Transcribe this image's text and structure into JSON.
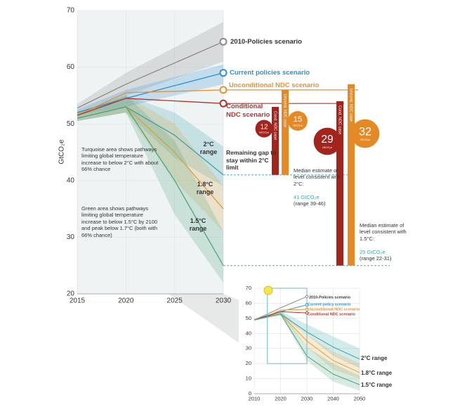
{
  "chart_data": [
    {
      "type": "line",
      "y_label": "GtCO₂e",
      "xlim": [
        2015,
        2030
      ],
      "xticks": [
        2015,
        2020,
        2025,
        2030
      ],
      "ylim": [
        20,
        70
      ],
      "yticks": [
        20,
        30,
        40,
        50,
        60,
        70
      ],
      "series": [
        {
          "name": "2010-Policies scenario",
          "color": "#8a8a86",
          "x": [
            2015,
            2020,
            2030
          ],
          "values": [
            52.8,
            57,
            64.5
          ],
          "low": [
            52,
            55,
            61
          ],
          "high": [
            53.5,
            59,
            68
          ]
        },
        {
          "name": "Current policies scenario",
          "color": "#2f8fd0",
          "x": [
            2015,
            2020,
            2030
          ],
          "values": [
            52,
            54.5,
            59
          ],
          "low": [
            51.5,
            53,
            57
          ],
          "high": [
            52.5,
            56,
            60.5
          ]
        },
        {
          "name": "Unconditional NDC scenario",
          "color": "#e8912e",
          "x": [
            2015,
            2020,
            2030
          ],
          "values": [
            51.5,
            55.5,
            56
          ]
        },
        {
          "name": "Conditional NDC scenario",
          "color": "#b5332a",
          "x": [
            2015,
            2020,
            2030
          ],
          "values": [
            51.5,
            54.5,
            53.6
          ]
        },
        {
          "name": "2°C range",
          "color": "#3aa3a8",
          "x": [
            2015,
            2020,
            2025,
            2030
          ],
          "values": [
            51,
            53,
            48,
            41
          ],
          "low": [
            50.5,
            52,
            44,
            39
          ],
          "high": [
            52,
            55,
            52,
            46
          ]
        },
        {
          "name": "1.8°C range",
          "color": "#d9a23a",
          "x": [
            2015,
            2020,
            2025,
            2030
          ],
          "values": [
            51,
            53,
            45,
            35
          ],
          "low": [
            50.5,
            52,
            40,
            31
          ],
          "high": [
            52,
            55,
            50,
            39
          ]
        },
        {
          "name": "1.5°C range",
          "color": "#4fa57a",
          "x": [
            2015,
            2020,
            2025,
            2030
          ],
          "values": [
            51,
            53,
            40,
            25
          ],
          "low": [
            50.5,
            52,
            34,
            22
          ],
          "high": [
            52,
            55,
            47,
            31
          ]
        }
      ],
      "notes": [
        "Turquoise area shows pathways limiting global temperature increase to below 2°C with about 66% chance",
        "Green area shows pathways limiting global temperature increase to below 1.5°C by 2100 and peak below 1.7°C (both with 66% chance)"
      ],
      "gap_title": "Remaining gap to stay within 2°C limit",
      "gap_unit": "GtCO₂e",
      "gaps": [
        {
          "value": 12,
          "base": 41,
          "color": "#a3241c",
          "label": "Cond. NDC case"
        },
        {
          "value": 15,
          "base": 41,
          "color": "#e38a26",
          "label": "Uncond. NDC case"
        },
        {
          "value": 29,
          "base": 25,
          "color": "#a3241c",
          "label": "Cond. NDC case"
        },
        {
          "value": 32,
          "base": 25,
          "color": "#e38a26",
          "label": "Uncond. NDC case"
        }
      ],
      "medians": [
        {
          "text": "Median estimate of level consistent with 2°C:",
          "value_text": "41 GtCO₂e",
          "range": "(range 39-46)"
        },
        {
          "text": "Median estimate of level consistent with 1.5°C:",
          "value_text": "25 GtCO₂e",
          "range": "(range 22-31)"
        }
      ]
    },
    {
      "type": "line",
      "xlim": [
        2010,
        2050
      ],
      "xticks": [
        2010,
        2020,
        2030,
        2040,
        2050
      ],
      "ylim": [
        0,
        70
      ],
      "yticks": [
        0,
        10,
        20,
        30,
        40,
        50,
        60,
        70
      ],
      "series": [
        {
          "name": "2010-Policies scenario",
          "color": "#8a8a86",
          "x": [
            2010,
            2015,
            2020,
            2030
          ],
          "values": [
            49,
            52.8,
            57,
            64.5
          ]
        },
        {
          "name": "Current policy scenario",
          "color": "#2f8fd0",
          "x": [
            2010,
            2015,
            2020,
            2030
          ],
          "values": [
            49,
            52,
            54.5,
            59
          ]
        },
        {
          "name": "Unconditional NDC scenario",
          "color": "#e8912e",
          "x": [
            2010,
            2015,
            2020,
            2030
          ],
          "values": [
            49,
            51.5,
            55.5,
            56
          ]
        },
        {
          "name": "Conditional NDC scenario",
          "color": "#b5332a",
          "x": [
            2010,
            2015,
            2020,
            2030
          ],
          "values": [
            49,
            51.5,
            54.5,
            53.6
          ]
        },
        {
          "name": "2°C range",
          "color": "#3aa3a8",
          "x": [
            2010,
            2015,
            2020,
            2030,
            2040,
            2050
          ],
          "values": [
            49,
            51,
            53,
            41,
            31,
            23
          ],
          "low": [
            48.5,
            50.5,
            52,
            39,
            25,
            17
          ],
          "high": [
            49.5,
            52,
            55,
            46,
            38,
            30
          ]
        },
        {
          "name": "1.8°C range",
          "color": "#d9a23a",
          "x": [
            2010,
            2015,
            2020,
            2030,
            2040,
            2050
          ],
          "values": [
            49,
            51,
            53,
            35,
            22,
            14
          ],
          "low": [
            48.5,
            50.5,
            52,
            31,
            16,
            10
          ],
          "high": [
            49.5,
            52,
            55,
            39,
            28,
            20
          ]
        },
        {
          "name": "1.5°C range",
          "color": "#4fa57a",
          "x": [
            2010,
            2015,
            2020,
            2030,
            2040,
            2050
          ],
          "values": [
            49,
            51,
            53,
            25,
            13,
            6
          ],
          "low": [
            48.5,
            50.5,
            52,
            22,
            8,
            2
          ],
          "high": [
            49.5,
            52,
            55,
            31,
            20,
            12
          ]
        }
      ]
    }
  ]
}
